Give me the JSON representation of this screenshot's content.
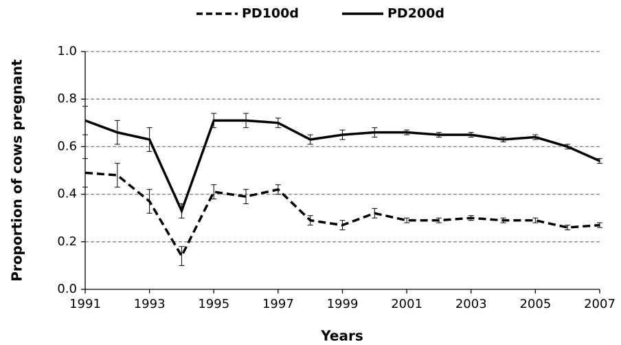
{
  "chart_data": {
    "type": "line",
    "x_label": "Years",
    "y_label": "Proportion of cows pregnant",
    "x": [
      1991,
      1992,
      1993,
      1994,
      1995,
      1996,
      1997,
      1998,
      1999,
      2000,
      2001,
      2002,
      2003,
      2004,
      2005,
      2006,
      2007
    ],
    "series": [
      {
        "name": "PD100d",
        "color": "#000000",
        "line_style": "dashed",
        "values": [
          0.49,
          0.48,
          0.37,
          0.14,
          0.41,
          0.39,
          0.42,
          0.29,
          0.27,
          0.32,
          0.29,
          0.29,
          0.3,
          0.29,
          0.29,
          0.26,
          0.27
        ],
        "errors": [
          0.06,
          0.05,
          0.05,
          0.04,
          0.03,
          0.03,
          0.02,
          0.02,
          0.02,
          0.02,
          0.01,
          0.01,
          0.01,
          0.01,
          0.01,
          0.01,
          0.01
        ]
      },
      {
        "name": "PD200d",
        "color": "#000000",
        "line_style": "solid",
        "values": [
          0.71,
          0.66,
          0.63,
          0.33,
          0.71,
          0.71,
          0.7,
          0.63,
          0.65,
          0.66,
          0.66,
          0.65,
          0.65,
          0.63,
          0.64,
          0.6,
          0.54
        ],
        "errors": [
          0.06,
          0.05,
          0.05,
          0.03,
          0.03,
          0.03,
          0.02,
          0.02,
          0.02,
          0.02,
          0.01,
          0.01,
          0.01,
          0.01,
          0.01,
          0.01,
          0.01
        ]
      }
    ],
    "xlim": [
      1991,
      2007
    ],
    "xticks": [
      1991,
      1993,
      1995,
      1997,
      1999,
      2001,
      2003,
      2005,
      2007
    ],
    "ylim": [
      0,
      1
    ],
    "yticks": [
      {
        "value": 0,
        "label": "0.0"
      },
      0.2,
      0.4,
      0.6,
      0.8,
      {
        "value": 1,
        "label": "1.0"
      }
    ],
    "grid": true,
    "legend_position": "top"
  }
}
